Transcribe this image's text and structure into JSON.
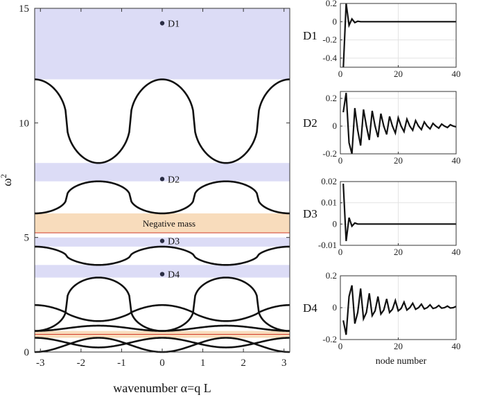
{
  "chart_data": [
    {
      "type": "line",
      "xlabel": "wavenumber α=q L",
      "ylabel": "ω",
      "ylabel_sup": "2",
      "xlim": [
        -3.1416,
        3.1416
      ],
      "ylim": [
        0,
        15
      ],
      "xticks": [
        "-3",
        "-2",
        "-1",
        "0",
        "1",
        "2",
        "3"
      ],
      "yticks": [
        "0",
        "5",
        "10",
        "15"
      ],
      "bands": [
        {
          "ymin": 11.9,
          "ymax": 15,
          "color": "#dcdcf6"
        },
        {
          "ymin": 7.45,
          "ymax": 8.25,
          "color": "#dcdcf6"
        },
        {
          "ymin": 4.6,
          "ymax": 5.0,
          "color": "#dcdcf6"
        },
        {
          "ymin": 3.25,
          "ymax": 3.8,
          "color": "#dcdcf6"
        },
        {
          "ymin": 5.2,
          "ymax": 6.05,
          "color": "#f8dcbc"
        },
        {
          "ymin": 0.62,
          "ymax": 0.92,
          "color": "#f8dcbc"
        }
      ],
      "red_lines": [
        5.2,
        0.77
      ],
      "band_label": "Negative mass",
      "defect_points": [
        {
          "label": "D1",
          "x": 0,
          "y": 14.35
        },
        {
          "label": "D2",
          "x": 0,
          "y": 7.55
        },
        {
          "label": "D3",
          "x": 0,
          "y": 4.85
        },
        {
          "label": "D4",
          "x": 0,
          "y": 3.4
        }
      ],
      "series": [
        {
          "type": "v",
          "ymin": 8.25,
          "ymax": 11.9,
          "sharp": 2.2
        },
        {
          "type": "w",
          "ymin": 6.05,
          "ymax": 7.45,
          "sharp": 2.2
        },
        {
          "type": "v",
          "ymin": 3.8,
          "ymax": 4.6,
          "sharp": 1.6
        },
        {
          "type": "w",
          "ymin": 0.92,
          "ymax": 3.25,
          "sharp": 2.6
        },
        {
          "type": "v",
          "ymin": 1.35,
          "ymax": 2.05,
          "sharp": 1.2
        },
        {
          "type": "w",
          "ymin": 0.92,
          "ymax": 1.15,
          "sharp": 1.0
        },
        {
          "type": "w",
          "ymin": 0,
          "ymax": 0.62,
          "sharp": 1.0
        },
        {
          "type": "v",
          "ymin": 0.2,
          "ymax": 0.62,
          "sharp": 1.0
        }
      ]
    },
    {
      "type": "line",
      "name": "D1",
      "xlim": [
        0,
        40
      ],
      "ylim": [
        -0.5,
        0.2
      ],
      "xticks": [
        "0",
        "20",
        "40"
      ],
      "yticks": [
        "0.2",
        "0",
        "-0.2",
        "-0.4"
      ],
      "ytick_values": [
        0.2,
        0,
        -0.2,
        -0.4
      ],
      "x": [
        1,
        2,
        3,
        4,
        5,
        6,
        7,
        8,
        9,
        10,
        20,
        30,
        40
      ],
      "y": [
        -0.52,
        0.2,
        -0.04,
        0.03,
        -0.01,
        0.005,
        0,
        0,
        0,
        0,
        0,
        0,
        0
      ]
    },
    {
      "type": "line",
      "name": "D2",
      "xlim": [
        0,
        40
      ],
      "ylim": [
        -0.2,
        0.25
      ],
      "xticks": [
        "0",
        "20",
        "40"
      ],
      "yticks": [
        "0.2",
        "0",
        "-0.2"
      ],
      "ytick_values": [
        0.2,
        0,
        -0.2
      ],
      "x": [
        1,
        2,
        3,
        4,
        5,
        6,
        7,
        8,
        9,
        10,
        11,
        12,
        13,
        14,
        15,
        16,
        17,
        18,
        19,
        20,
        21,
        22,
        23,
        24,
        25,
        26,
        27,
        28,
        29,
        30,
        31,
        32,
        33,
        34,
        35,
        36,
        37,
        38,
        39,
        40
      ],
      "y": [
        0.1,
        0.24,
        -0.12,
        -0.2,
        0.13,
        -0.03,
        -0.14,
        0.12,
        0.0,
        -0.1,
        0.11,
        0.0,
        -0.08,
        0.09,
        0.0,
        -0.06,
        0.07,
        0.0,
        -0.05,
        0.06,
        0.0,
        -0.04,
        0.05,
        0.0,
        -0.03,
        0.04,
        0.0,
        -0.025,
        0.03,
        0.0,
        -0.02,
        0.02,
        0.0,
        -0.015,
        0.015,
        0.0,
        -0.01,
        0.01,
        0.0,
        -0.005
      ]
    },
    {
      "type": "line",
      "name": "D3",
      "xlim": [
        0,
        40
      ],
      "ylim": [
        -0.01,
        0.02
      ],
      "xticks": [
        "0",
        "20",
        "40"
      ],
      "yticks": [
        "0.02",
        "0.01",
        "0",
        "-0.01"
      ],
      "ytick_values": [
        0.02,
        0.01,
        0,
        -0.01
      ],
      "x": [
        1,
        2,
        3,
        4,
        5,
        6,
        7,
        8,
        9,
        10,
        20,
        30,
        40
      ],
      "y": [
        0.019,
        -0.008,
        0.003,
        -0.001,
        0.0005,
        0,
        0,
        0,
        0,
        0,
        0,
        0,
        0
      ]
    },
    {
      "type": "line",
      "name": "D4",
      "xlabel": "node number",
      "xlim": [
        0,
        40
      ],
      "ylim": [
        -0.2,
        0.2
      ],
      "xticks": [
        "0",
        "20",
        "40"
      ],
      "yticks": [
        "0.2",
        "0",
        "-0.2"
      ],
      "ytick_values": [
        0.2,
        0,
        -0.2
      ],
      "x": [
        1,
        2,
        3,
        4,
        5,
        6,
        7,
        8,
        9,
        10,
        11,
        12,
        13,
        14,
        15,
        16,
        17,
        18,
        19,
        20,
        21,
        22,
        23,
        24,
        25,
        26,
        27,
        28,
        29,
        30,
        31,
        32,
        33,
        34,
        35,
        36,
        37,
        38,
        39,
        40
      ],
      "y": [
        -0.08,
        -0.17,
        0.07,
        0.14,
        -0.1,
        -0.03,
        0.12,
        -0.07,
        -0.03,
        0.09,
        -0.05,
        -0.02,
        0.07,
        -0.04,
        -0.015,
        0.055,
        -0.03,
        -0.01,
        0.045,
        -0.02,
        -0.005,
        0.035,
        -0.015,
        0.0,
        0.028,
        -0.01,
        0.0,
        0.022,
        -0.008,
        0.0,
        0.018,
        -0.005,
        0.0,
        0.014,
        -0.003,
        0.0,
        0.01,
        -0.002,
        0.0,
        0.008
      ]
    }
  ]
}
